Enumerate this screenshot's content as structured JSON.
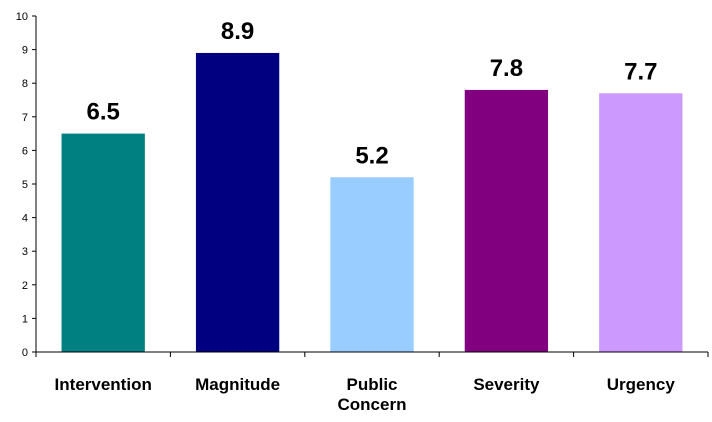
{
  "chart_data": {
    "type": "bar",
    "title": "",
    "xlabel": "",
    "ylabel": "",
    "ylim": [
      0,
      10
    ],
    "yticks": [
      0,
      1,
      2,
      3,
      4,
      5,
      6,
      7,
      8,
      9,
      10
    ],
    "grid": false,
    "legend": "none",
    "categories": [
      [
        "Intervention"
      ],
      [
        "Magnitude"
      ],
      [
        "Public",
        "Concern"
      ],
      [
        "Severity"
      ],
      [
        "Urgency"
      ]
    ],
    "values": [
      6.5,
      8.9,
      5.2,
      7.8,
      7.7
    ],
    "data_labels": [
      "6.5",
      "8.9",
      "5.2",
      "7.8",
      "7.7"
    ],
    "bar_colors": [
      "#008080",
      "#000080",
      "#99ccff",
      "#800080",
      "#cc99ff"
    ]
  }
}
